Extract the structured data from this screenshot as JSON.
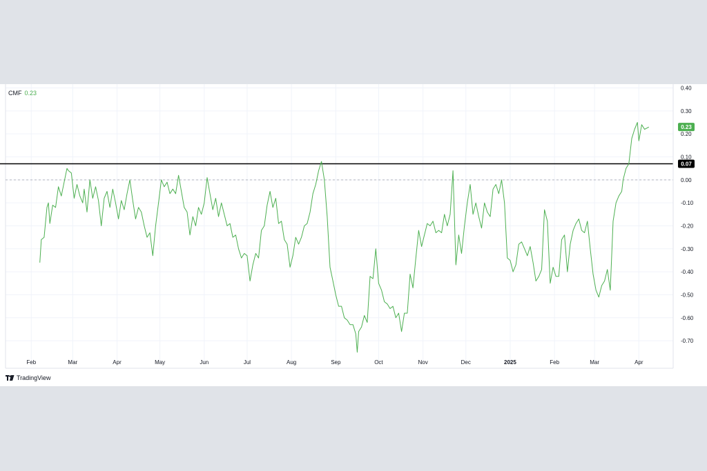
{
  "legend": {
    "indicator": "CMF",
    "value": "0.23"
  },
  "watermark": "TradingView",
  "colors": {
    "line": "#4caf50",
    "badge": "#4caf50",
    "hline": "#000000",
    "zero": "#b2b5be",
    "grid": "#f0f3fa",
    "page_bg": "#e0e3e8"
  },
  "chart_data": {
    "type": "line",
    "title": "",
    "xlabel": "",
    "ylabel": "",
    "ylim": [
      -0.8,
      0.4
    ],
    "yticks": [
      0.4,
      0.3,
      0.2,
      0.1,
      0.0,
      -0.1,
      -0.2,
      -0.3,
      -0.4,
      -0.5,
      -0.6,
      -0.7
    ],
    "ytick_labels": [
      "0.40",
      "0.30",
      "0.20",
      "0.10",
      "0.00",
      "-0.10",
      "-0.20",
      "-0.30",
      "-0.40",
      "-0.50",
      "-0.60",
      "-0.70"
    ],
    "xlim": [
      "2024-01-14",
      "2025-04-25"
    ],
    "xticks": [
      {
        "date": "2024-02-01",
        "label": "Feb",
        "bold": false
      },
      {
        "date": "2024-03-01",
        "label": "Mar",
        "bold": false
      },
      {
        "date": "2024-04-01",
        "label": "Apr",
        "bold": false
      },
      {
        "date": "2024-05-01",
        "label": "May",
        "bold": false
      },
      {
        "date": "2024-06-01",
        "label": "Jun",
        "bold": false
      },
      {
        "date": "2024-07-01",
        "label": "Jul",
        "bold": false
      },
      {
        "date": "2024-08-01",
        "label": "Aug",
        "bold": false
      },
      {
        "date": "2024-09-01",
        "label": "Sep",
        "bold": false
      },
      {
        "date": "2024-10-01",
        "label": "Oct",
        "bold": false
      },
      {
        "date": "2024-11-01",
        "label": "Nov",
        "bold": false
      },
      {
        "date": "2024-12-01",
        "label": "Dec",
        "bold": false
      },
      {
        "date": "2025-01-01",
        "label": "2025",
        "bold": true
      },
      {
        "date": "2025-02-01",
        "label": "Feb",
        "bold": false
      },
      {
        "date": "2025-03-01",
        "label": "Mar",
        "bold": false
      },
      {
        "date": "2025-04-01",
        "label": "Apr",
        "bold": false
      }
    ],
    "horizontal_line": {
      "value": 0.07,
      "label": "0.07"
    },
    "last_value_label": "0.23",
    "grid": true,
    "series": [
      {
        "values": [
          [
            "2024-02-07",
            -0.36
          ],
          [
            "2024-02-08",
            -0.26
          ],
          [
            "2024-02-10",
            -0.25
          ],
          [
            "2024-02-12",
            -0.12
          ],
          [
            "2024-02-13",
            -0.1
          ],
          [
            "2024-02-14",
            -0.19
          ],
          [
            "2024-02-16",
            -0.11
          ],
          [
            "2024-02-18",
            -0.12
          ],
          [
            "2024-02-20",
            -0.03
          ],
          [
            "2024-02-22",
            -0.07
          ],
          [
            "2024-02-24",
            -0.01
          ],
          [
            "2024-02-26",
            0.05
          ],
          [
            "2024-02-27",
            0.04
          ],
          [
            "2024-02-29",
            0.03
          ],
          [
            "2024-03-02",
            -0.08
          ],
          [
            "2024-03-04",
            -0.02
          ],
          [
            "2024-03-06",
            -0.07
          ],
          [
            "2024-03-08",
            -0.1
          ],
          [
            "2024-03-09",
            -0.04
          ],
          [
            "2024-03-11",
            -0.14
          ],
          [
            "2024-03-13",
            0.0
          ],
          [
            "2024-03-15",
            -0.08
          ],
          [
            "2024-03-17",
            -0.03
          ],
          [
            "2024-03-19",
            -0.09
          ],
          [
            "2024-03-21",
            -0.2
          ],
          [
            "2024-03-23",
            -0.08
          ],
          [
            "2024-03-25",
            -0.05
          ],
          [
            "2024-03-27",
            -0.12
          ],
          [
            "2024-03-29",
            -0.04
          ],
          [
            "2024-03-31",
            -0.1
          ],
          [
            "2024-04-02",
            -0.17
          ],
          [
            "2024-04-04",
            -0.09
          ],
          [
            "2024-04-06",
            -0.13
          ],
          [
            "2024-04-08",
            -0.06
          ],
          [
            "2024-04-10",
            0.0
          ],
          [
            "2024-04-12",
            -0.09
          ],
          [
            "2024-04-14",
            -0.17
          ],
          [
            "2024-04-16",
            -0.12
          ],
          [
            "2024-04-18",
            -0.14
          ],
          [
            "2024-04-20",
            -0.2
          ],
          [
            "2024-04-22",
            -0.25
          ],
          [
            "2024-04-24",
            -0.23
          ],
          [
            "2024-04-26",
            -0.33
          ],
          [
            "2024-04-28",
            -0.2
          ],
          [
            "2024-04-30",
            -0.1
          ],
          [
            "2024-05-02",
            0.0
          ],
          [
            "2024-05-04",
            -0.03
          ],
          [
            "2024-05-06",
            -0.01
          ],
          [
            "2024-05-08",
            -0.06
          ],
          [
            "2024-05-10",
            -0.04
          ],
          [
            "2024-05-12",
            -0.06
          ],
          [
            "2024-05-14",
            0.02
          ],
          [
            "2024-05-16",
            -0.05
          ],
          [
            "2024-05-18",
            -0.12
          ],
          [
            "2024-05-20",
            -0.14
          ],
          [
            "2024-05-22",
            -0.24
          ],
          [
            "2024-05-24",
            -0.16
          ],
          [
            "2024-05-26",
            -0.2
          ],
          [
            "2024-05-28",
            -0.12
          ],
          [
            "2024-05-30",
            -0.15
          ],
          [
            "2024-06-01",
            -0.1
          ],
          [
            "2024-06-03",
            0.01
          ],
          [
            "2024-06-05",
            -0.06
          ],
          [
            "2024-06-07",
            -0.13
          ],
          [
            "2024-06-09",
            -0.08
          ],
          [
            "2024-06-11",
            -0.16
          ],
          [
            "2024-06-13",
            -0.1
          ],
          [
            "2024-06-15",
            -0.15
          ],
          [
            "2024-06-17",
            -0.2
          ],
          [
            "2024-06-19",
            -0.19
          ],
          [
            "2024-06-21",
            -0.25
          ],
          [
            "2024-06-23",
            -0.24
          ],
          [
            "2024-06-25",
            -0.3
          ],
          [
            "2024-06-27",
            -0.34
          ],
          [
            "2024-06-29",
            -0.32
          ],
          [
            "2024-07-01",
            -0.33
          ],
          [
            "2024-07-03",
            -0.44
          ],
          [
            "2024-07-05",
            -0.37
          ],
          [
            "2024-07-07",
            -0.32
          ],
          [
            "2024-07-09",
            -0.34
          ],
          [
            "2024-07-11",
            -0.22
          ],
          [
            "2024-07-13",
            -0.2
          ],
          [
            "2024-07-15",
            -0.11
          ],
          [
            "2024-07-17",
            -0.05
          ],
          [
            "2024-07-19",
            -0.12
          ],
          [
            "2024-07-21",
            -0.08
          ],
          [
            "2024-07-23",
            -0.19
          ],
          [
            "2024-07-25",
            -0.18
          ],
          [
            "2024-07-27",
            -0.26
          ],
          [
            "2024-07-29",
            -0.28
          ],
          [
            "2024-07-31",
            -0.38
          ],
          [
            "2024-08-02",
            -0.33
          ],
          [
            "2024-08-04",
            -0.25
          ],
          [
            "2024-08-06",
            -0.28
          ],
          [
            "2024-08-08",
            -0.25
          ],
          [
            "2024-08-10",
            -0.2
          ],
          [
            "2024-08-12",
            -0.19
          ],
          [
            "2024-08-14",
            -0.14
          ],
          [
            "2024-08-16",
            -0.06
          ],
          [
            "2024-08-18",
            -0.02
          ],
          [
            "2024-08-20",
            0.04
          ],
          [
            "2024-08-22",
            0.08
          ],
          [
            "2024-08-24",
            0.0
          ],
          [
            "2024-08-26",
            -0.16
          ],
          [
            "2024-08-28",
            -0.38
          ],
          [
            "2024-08-30",
            -0.44
          ],
          [
            "2024-09-01",
            -0.5
          ],
          [
            "2024-09-03",
            -0.55
          ],
          [
            "2024-09-05",
            -0.55
          ],
          [
            "2024-09-07",
            -0.6
          ],
          [
            "2024-09-09",
            -0.61
          ],
          [
            "2024-09-11",
            -0.63
          ],
          [
            "2024-09-13",
            -0.63
          ],
          [
            "2024-09-15",
            -0.67
          ],
          [
            "2024-09-16",
            -0.75
          ],
          [
            "2024-09-17",
            -0.66
          ],
          [
            "2024-09-19",
            -0.64
          ],
          [
            "2024-09-21",
            -0.59
          ],
          [
            "2024-09-23",
            -0.62
          ],
          [
            "2024-09-25",
            -0.42
          ],
          [
            "2024-09-27",
            -0.43
          ],
          [
            "2024-09-29",
            -0.3
          ],
          [
            "2024-10-01",
            -0.45
          ],
          [
            "2024-10-03",
            -0.48
          ],
          [
            "2024-10-05",
            -0.53
          ],
          [
            "2024-10-07",
            -0.54
          ],
          [
            "2024-10-09",
            -0.56
          ],
          [
            "2024-10-11",
            -0.55
          ],
          [
            "2024-10-13",
            -0.6
          ],
          [
            "2024-10-15",
            -0.58
          ],
          [
            "2024-10-17",
            -0.66
          ],
          [
            "2024-10-19",
            -0.58
          ],
          [
            "2024-10-21",
            -0.58
          ],
          [
            "2024-10-23",
            -0.41
          ],
          [
            "2024-10-25",
            -0.47
          ],
          [
            "2024-10-27",
            -0.34
          ],
          [
            "2024-10-29",
            -0.22
          ],
          [
            "2024-10-31",
            -0.29
          ],
          [
            "2024-11-02",
            -0.24
          ],
          [
            "2024-11-04",
            -0.19
          ],
          [
            "2024-11-06",
            -0.2
          ],
          [
            "2024-11-08",
            -0.18
          ],
          [
            "2024-11-10",
            -0.23
          ],
          [
            "2024-11-12",
            -0.22
          ],
          [
            "2024-11-14",
            -0.23
          ],
          [
            "2024-11-16",
            -0.15
          ],
          [
            "2024-11-18",
            -0.2
          ],
          [
            "2024-11-20",
            -0.15
          ],
          [
            "2024-11-22",
            0.04
          ],
          [
            "2024-11-24",
            -0.37
          ],
          [
            "2024-11-26",
            -0.24
          ],
          [
            "2024-11-28",
            -0.32
          ],
          [
            "2024-11-30",
            -0.2
          ],
          [
            "2024-12-02",
            -0.1
          ],
          [
            "2024-12-04",
            -0.02
          ],
          [
            "2024-12-06",
            -0.15
          ],
          [
            "2024-12-08",
            -0.1
          ],
          [
            "2024-12-10",
            -0.16
          ],
          [
            "2024-12-12",
            -0.21
          ],
          [
            "2024-12-14",
            -0.1
          ],
          [
            "2024-12-16",
            -0.14
          ],
          [
            "2024-12-18",
            -0.16
          ],
          [
            "2024-12-20",
            -0.04
          ],
          [
            "2024-12-22",
            -0.02
          ],
          [
            "2024-12-24",
            -0.06
          ],
          [
            "2024-12-26",
            0.0
          ],
          [
            "2024-12-28",
            -0.1
          ],
          [
            "2024-12-30",
            -0.34
          ],
          [
            "2025-01-01",
            -0.35
          ],
          [
            "2025-01-03",
            -0.4
          ],
          [
            "2025-01-05",
            -0.37
          ],
          [
            "2025-01-07",
            -0.28
          ],
          [
            "2025-01-09",
            -0.27
          ],
          [
            "2025-01-11",
            -0.3
          ],
          [
            "2025-01-13",
            -0.33
          ],
          [
            "2025-01-15",
            -0.29
          ],
          [
            "2025-01-17",
            -0.36
          ],
          [
            "2025-01-19",
            -0.44
          ],
          [
            "2025-01-21",
            -0.42
          ],
          [
            "2025-01-23",
            -0.39
          ],
          [
            "2025-01-25",
            -0.13
          ],
          [
            "2025-01-27",
            -0.18
          ],
          [
            "2025-01-29",
            -0.45
          ],
          [
            "2025-01-31",
            -0.38
          ],
          [
            "2025-02-02",
            -0.42
          ],
          [
            "2025-02-04",
            -0.42
          ],
          [
            "2025-02-06",
            -0.26
          ],
          [
            "2025-02-08",
            -0.24
          ],
          [
            "2025-02-10",
            -0.4
          ],
          [
            "2025-02-12",
            -0.28
          ],
          [
            "2025-02-14",
            -0.22
          ],
          [
            "2025-02-16",
            -0.19
          ],
          [
            "2025-02-18",
            -0.17
          ],
          [
            "2025-02-20",
            -0.22
          ],
          [
            "2025-02-22",
            -0.23
          ],
          [
            "2025-02-24",
            -0.18
          ],
          [
            "2025-02-26",
            -0.3
          ],
          [
            "2025-02-28",
            -0.41
          ],
          [
            "2025-03-02",
            -0.48
          ],
          [
            "2025-03-04",
            -0.51
          ],
          [
            "2025-03-06",
            -0.46
          ],
          [
            "2025-03-08",
            -0.44
          ],
          [
            "2025-03-10",
            -0.39
          ],
          [
            "2025-03-12",
            -0.48
          ],
          [
            "2025-03-14",
            -0.18
          ],
          [
            "2025-03-16",
            -0.1
          ],
          [
            "2025-03-18",
            -0.07
          ],
          [
            "2025-03-20",
            -0.05
          ],
          [
            "2025-03-21",
            0.0
          ],
          [
            "2025-03-23",
            0.05
          ],
          [
            "2025-03-25",
            0.07
          ],
          [
            "2025-03-27",
            0.18
          ],
          [
            "2025-03-29",
            0.22
          ],
          [
            "2025-03-31",
            0.25
          ],
          [
            "2025-04-01",
            0.17
          ],
          [
            "2025-04-03",
            0.24
          ],
          [
            "2025-04-05",
            0.22
          ],
          [
            "2025-04-08",
            0.23
          ]
        ]
      }
    ]
  }
}
